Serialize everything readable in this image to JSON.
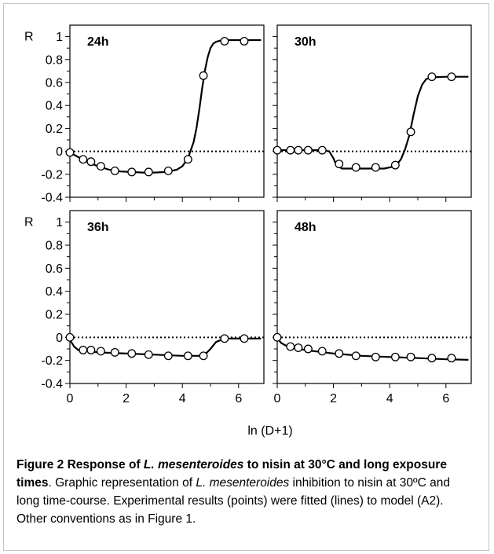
{
  "figure": {
    "xlabel": "ln (D+1)",
    "ylabel": "R",
    "x_ticks": [
      "0",
      "2",
      "4",
      "6"
    ],
    "y_ticks": [
      "1",
      "0.8",
      "0.6",
      "0.4",
      "0.2",
      "0",
      "-0.2",
      "-0.4"
    ],
    "colors": {
      "line": "#000000",
      "marker_fill": "#ffffff",
      "axis": "#000000",
      "zero_line": "#000000"
    }
  },
  "chart_data": [
    {
      "type": "scatter",
      "panel_label": "24h",
      "xlim": [
        0,
        6.9
      ],
      "ylim": [
        -0.4,
        1.1
      ],
      "zero_line": "dotted",
      "points": {
        "x": [
          0,
          0.47,
          0.75,
          1.1,
          1.6,
          2.2,
          2.8,
          3.5,
          4.2,
          4.75,
          5.5,
          6.2
        ],
        "y": [
          -0.01,
          -0.07,
          -0.09,
          -0.13,
          -0.17,
          -0.18,
          -0.18,
          -0.17,
          -0.07,
          0.66,
          0.96,
          0.96
        ]
      },
      "fit": {
        "x": [
          0,
          0.3,
          0.6,
          1.0,
          1.4,
          1.8,
          2.2,
          2.6,
          3.0,
          3.4,
          3.8,
          4.0,
          4.2,
          4.4,
          4.5,
          4.6,
          4.7,
          4.8,
          4.9,
          5.0,
          5.1,
          5.2,
          5.35,
          5.5,
          6.0,
          6.8
        ],
        "y": [
          -0.01,
          -0.05,
          -0.09,
          -0.13,
          -0.16,
          -0.175,
          -0.18,
          -0.185,
          -0.185,
          -0.18,
          -0.16,
          -0.13,
          -0.06,
          0.08,
          0.2,
          0.36,
          0.54,
          0.7,
          0.82,
          0.9,
          0.94,
          0.955,
          0.965,
          0.97,
          0.97,
          0.97
        ]
      }
    },
    {
      "type": "scatter",
      "panel_label": "30h",
      "xlim": [
        0,
        6.9
      ],
      "ylim": [
        -0.4,
        1.1
      ],
      "zero_line": "dotted",
      "points": {
        "x": [
          0,
          0.47,
          0.75,
          1.1,
          1.6,
          2.2,
          2.8,
          3.5,
          4.2,
          4.75,
          5.5,
          6.2
        ],
        "y": [
          0.01,
          0.01,
          0.01,
          0.01,
          0.01,
          -0.11,
          -0.14,
          -0.14,
          -0.12,
          0.17,
          0.65,
          0.65
        ]
      },
      "fit": {
        "x": [
          0,
          1.6,
          1.85,
          2.0,
          2.1,
          2.3,
          3.0,
          3.8,
          4.2,
          4.4,
          4.55,
          4.7,
          4.85,
          5.0,
          5.15,
          5.3,
          5.5,
          6.0,
          6.8
        ],
        "y": [
          0.01,
          0.01,
          0.0,
          -0.06,
          -0.12,
          -0.15,
          -0.15,
          -0.15,
          -0.13,
          -0.07,
          0.02,
          0.14,
          0.32,
          0.48,
          0.58,
          0.63,
          0.645,
          0.65,
          0.65
        ]
      }
    },
    {
      "type": "scatter",
      "panel_label": "36h",
      "xlim": [
        0,
        6.9
      ],
      "ylim": [
        -0.4,
        1.1
      ],
      "zero_line": "dotted",
      "points": {
        "x": [
          0,
          0.47,
          0.75,
          1.1,
          1.6,
          2.2,
          2.8,
          3.5,
          4.2,
          4.75,
          5.5,
          6.2
        ],
        "y": [
          0,
          -0.11,
          -0.11,
          -0.12,
          -0.13,
          -0.14,
          -0.15,
          -0.16,
          -0.16,
          -0.16,
          -0.01,
          -0.01
        ]
      },
      "fit": {
        "x": [
          0,
          0.15,
          0.3,
          0.6,
          1.0,
          2.0,
          3.0,
          4.0,
          4.6,
          4.8,
          5.0,
          5.2,
          5.4,
          5.6,
          6.8
        ],
        "y": [
          -0.02,
          -0.08,
          -0.11,
          -0.12,
          -0.13,
          -0.14,
          -0.15,
          -0.16,
          -0.16,
          -0.15,
          -0.1,
          -0.04,
          -0.02,
          -0.01,
          -0.01
        ]
      }
    },
    {
      "type": "scatter",
      "panel_label": "48h",
      "xlim": [
        0,
        6.9
      ],
      "ylim": [
        -0.4,
        1.1
      ],
      "zero_line": "dotted",
      "points": {
        "x": [
          0,
          0.47,
          0.75,
          1.1,
          1.6,
          2.2,
          2.8,
          3.5,
          4.2,
          4.75,
          5.5,
          6.2
        ],
        "y": [
          0,
          -0.08,
          -0.09,
          -0.1,
          -0.12,
          -0.14,
          -0.16,
          -0.17,
          -0.17,
          -0.17,
          -0.18,
          -0.18
        ]
      },
      "fit": {
        "x": [
          0,
          0.15,
          0.3,
          0.6,
          1.0,
          1.5,
          2.0,
          3.0,
          4.0,
          5.0,
          6.0,
          6.8
        ],
        "y": [
          -0.01,
          -0.05,
          -0.07,
          -0.09,
          -0.11,
          -0.125,
          -0.14,
          -0.16,
          -0.17,
          -0.18,
          -0.19,
          -0.195
        ]
      }
    }
  ],
  "caption": {
    "title_prefix": "Figure 2 Response of ",
    "title_species": "L. mesenteroides",
    "title_suffix": " to nisin at 30°C and long exposure times",
    "title_end": ". ",
    "body_1": "Graphic representation of ",
    "body_species": "L. mesenteroides",
    "body_2": " inhibition to nisin at 30ºC and long time-course. Experimental results (points) were fitted (lines) to model (A2). Other conventions as in Figure 1."
  }
}
